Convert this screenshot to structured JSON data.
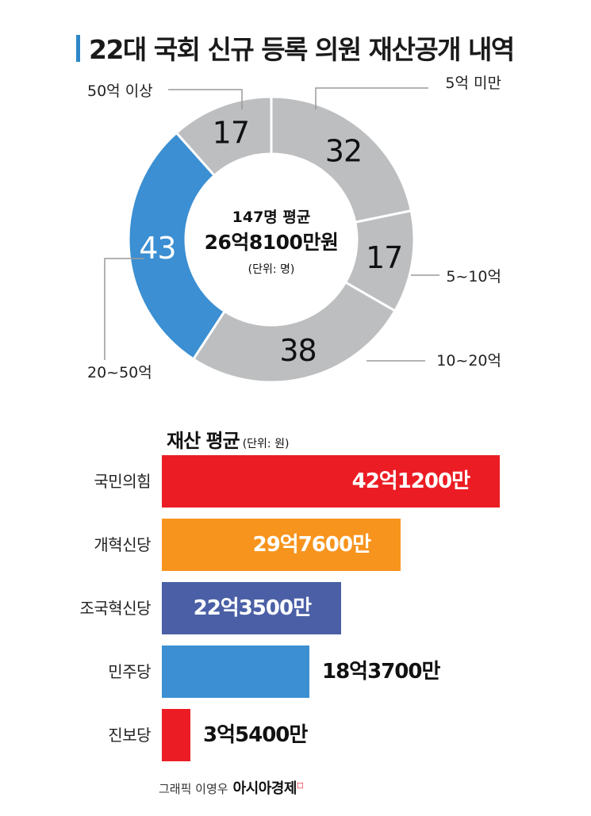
{
  "title": "22대 국회 신규 등록 의원 재산공개 내역",
  "colors": {
    "accent": "#2f86c8",
    "gray": "#bcbec0",
    "red": "#ec1c24",
    "orange": "#f7941d",
    "navy": "#4a5fa5",
    "blue": "#3b8fd2"
  },
  "donut": {
    "center": {
      "line1": "147명 평균",
      "line2": "26억8100만원",
      "line3": "(단위: 명)"
    }
  },
  "bar_section": {
    "title": "재산 평균",
    "unit": "(단위: 원)"
  },
  "credit": {
    "text": "그래픽 이영우",
    "brand": "아시아경제",
    "mark": "◻"
  },
  "chart_data": [
    {
      "type": "pie",
      "title": "",
      "categories": [
        "5억 미만",
        "5~10억",
        "10~20억",
        "20~50억",
        "50억 이상"
      ],
      "values": [
        32,
        17,
        38,
        43,
        17
      ],
      "value_labels": [
        "32",
        "17",
        "38",
        "43",
        "17"
      ],
      "highlight": "20~50억",
      "colors": [
        "#bcbec0",
        "#bcbec0",
        "#bcbec0",
        "#3b8fd2",
        "#bcbec0"
      ]
    },
    {
      "type": "bar",
      "orientation": "horizontal",
      "categories": [
        "국민의힘",
        "개혁신당",
        "조국혁신당",
        "민주당",
        "진보당"
      ],
      "values": [
        42.12,
        29.76,
        22.35,
        18.37,
        3.54
      ],
      "value_labels": [
        "42억1200만",
        "29억7600만",
        "22억3500만",
        "18억3700만",
        "3억5400만"
      ],
      "colors": [
        "#ec1c24",
        "#f7941d",
        "#4a5fa5",
        "#3b8fd2",
        "#ec1c24"
      ]
    }
  ]
}
